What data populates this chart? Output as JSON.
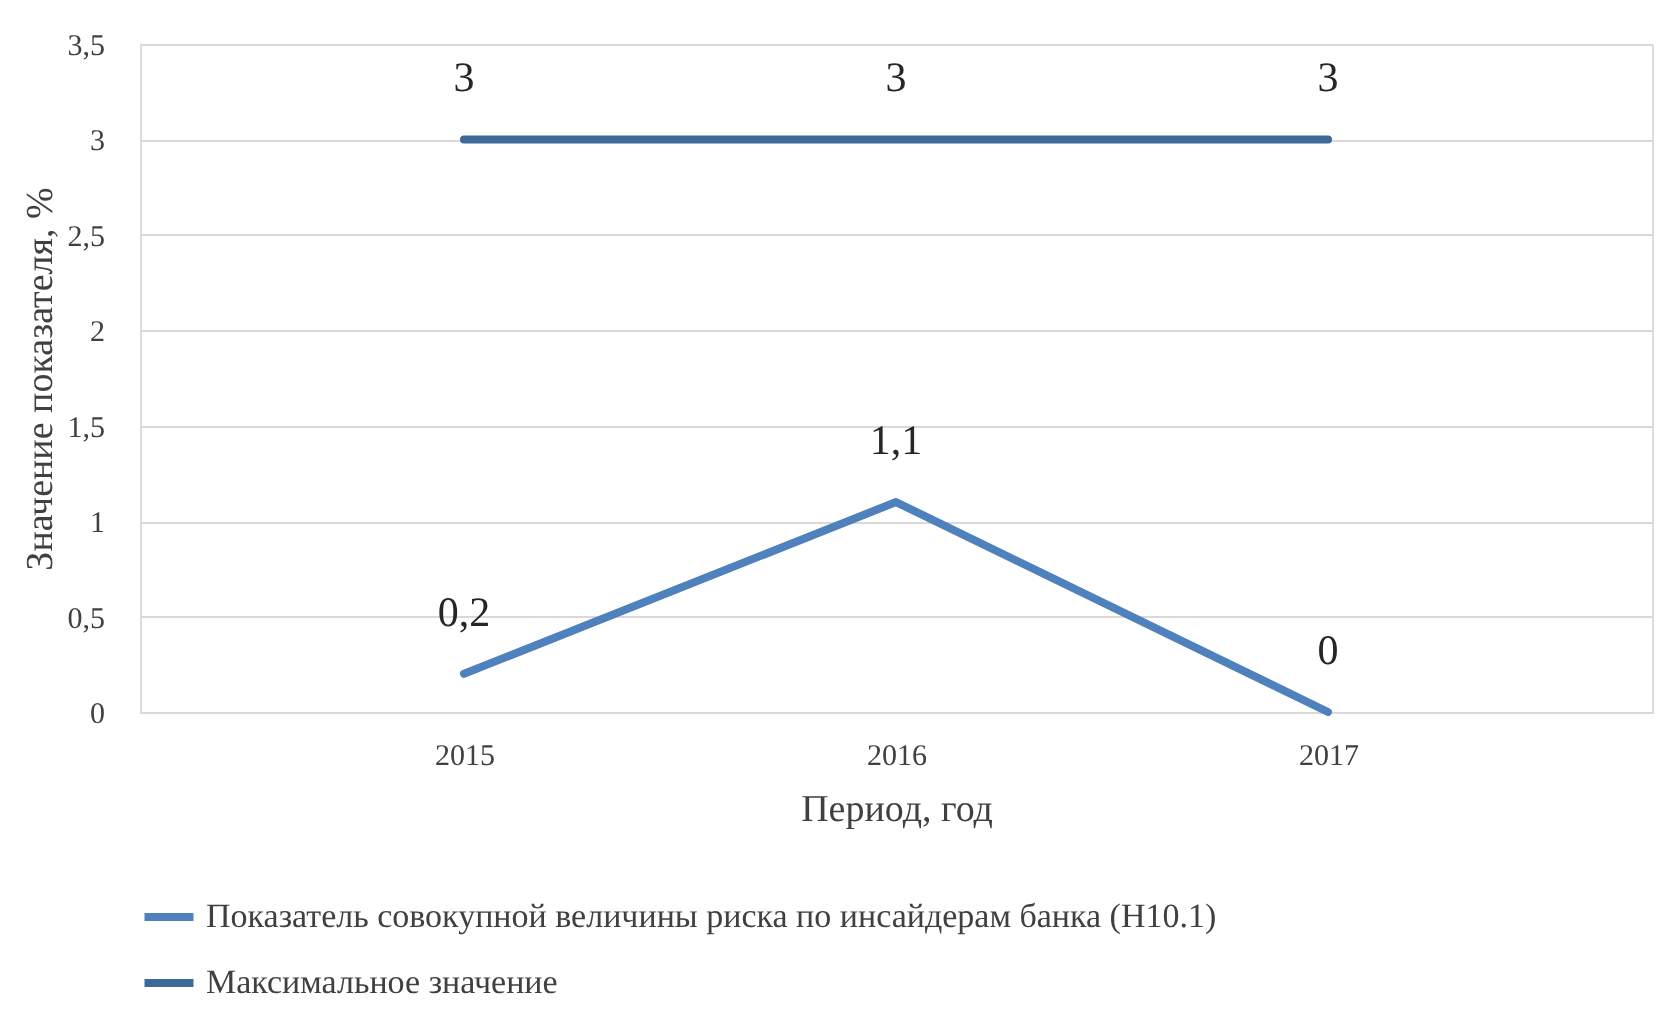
{
  "chart_data": {
    "type": "line",
    "xlabel": "Период, год",
    "ylabel": "Значение показателя, %",
    "categories": [
      "2015",
      "2016",
      "2017"
    ],
    "series": [
      {
        "name": "Показатель совокупной величины риска по инсайдерам банка (Н10.1)",
        "color": "#4f81bd",
        "values": [
          0.2,
          1.1,
          0
        ],
        "value_labels": [
          "0,2",
          "1,1",
          "0"
        ]
      },
      {
        "name": "Максимальное значение",
        "color": "#3d6a98",
        "values": [
          3,
          3,
          3
        ],
        "value_labels": [
          "3",
          "3",
          "3"
        ]
      }
    ],
    "ylim": [
      0,
      3.5
    ],
    "yticks": [
      0,
      {
        "value": 0.5,
        "label": "0,5"
      },
      1,
      {
        "value": 1.5,
        "label": "1,5"
      },
      2,
      {
        "value": 2.5,
        "label": "2,5"
      },
      3,
      {
        "value": 3.5,
        "label": "3,5"
      }
    ],
    "grid": "y",
    "legend": "bottom",
    "line_style": "solid",
    "marker": "none"
  }
}
